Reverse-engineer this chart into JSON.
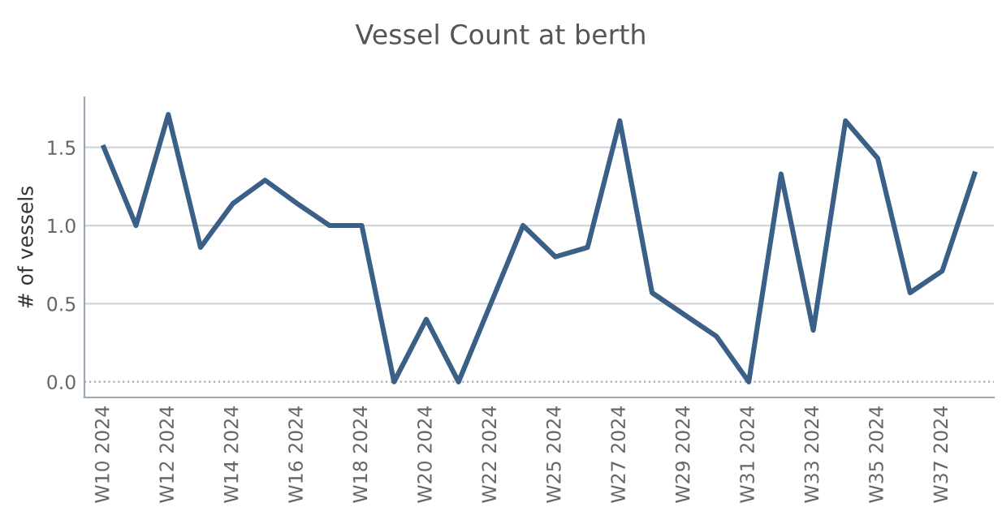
{
  "chart_data": {
    "type": "line",
    "title": "Vessel Count at berth",
    "ylabel": "# of vessels",
    "categories": [
      "W10 2024",
      null,
      "W12 2024",
      null,
      "W14 2024",
      null,
      "W16 2024",
      null,
      "W18 2024",
      null,
      "W20 2024",
      null,
      "W22 2024",
      null,
      "W25 2024",
      null,
      "W27 2024",
      null,
      "W29 2024",
      null,
      "W31 2024",
      null,
      "W33 2024",
      null,
      "W35 2024",
      null,
      "W37 2024",
      null
    ],
    "series": [
      {
        "color": "#3b6088",
        "values": [
          1.5,
          1.0,
          1.71,
          0.86,
          1.14,
          1.29,
          1.14,
          1.0,
          1.0,
          0,
          0.4,
          0,
          0.5,
          1.0,
          0.8,
          0.86,
          1.67,
          0.57,
          0.43,
          0.29,
          0,
          1.33,
          0.33,
          1.67,
          1.43,
          0.57,
          0.71,
          1.33
        ]
      }
    ],
    "ylim": [
      -0.1,
      1.82
    ],
    "yticks": [
      {
        "value": 0,
        "label": "0.0"
      },
      {
        "value": 0.5,
        "label": "0.5"
      },
      {
        "value": 1,
        "label": "1.0"
      },
      {
        "value": 1.5,
        "label": "1.5"
      }
    ],
    "ref_lines": [
      {
        "axis": "y",
        "value": 0,
        "label": null,
        "color": "#aaaaaa",
        "line_style": "dotted"
      }
    ],
    "grid": "y",
    "marker": "none",
    "line_style": "solid"
  }
}
